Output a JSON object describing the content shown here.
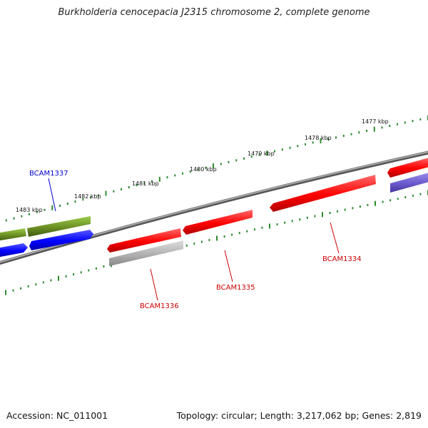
{
  "title": "Burkholderia cenocepacia J2315 chromosome 2, complete genome",
  "footer": {
    "accession": "Accession: NC_011001",
    "topology": "Topology: circular; Length: 3,217,062 bp; Genes: 2,819"
  },
  "colors": {
    "backbone": "#7d7d7d",
    "tick_green": "#2e8b2e",
    "gene_red": "#ff0000",
    "gene_blue": "#0000ff",
    "gene_olive": "#6b8e23",
    "gene_gray": "#b0b0b0",
    "gene_slateblue": "#6a5acd",
    "label_red": "#cc0000",
    "label_blue": "#0000cc"
  },
  "scale_labels": [
    "1483 kbp",
    "1482 kbp",
    "1481 kbp",
    "1480 kbp",
    "1479 kbp",
    "1478 kbp",
    "1477 kbp"
  ],
  "gene_labels": {
    "bcam1337": "BCAM1337",
    "bcam1336": "BCAM1336",
    "bcam1335": "BCAM1335",
    "bcam1334": "BCAM1334"
  }
}
